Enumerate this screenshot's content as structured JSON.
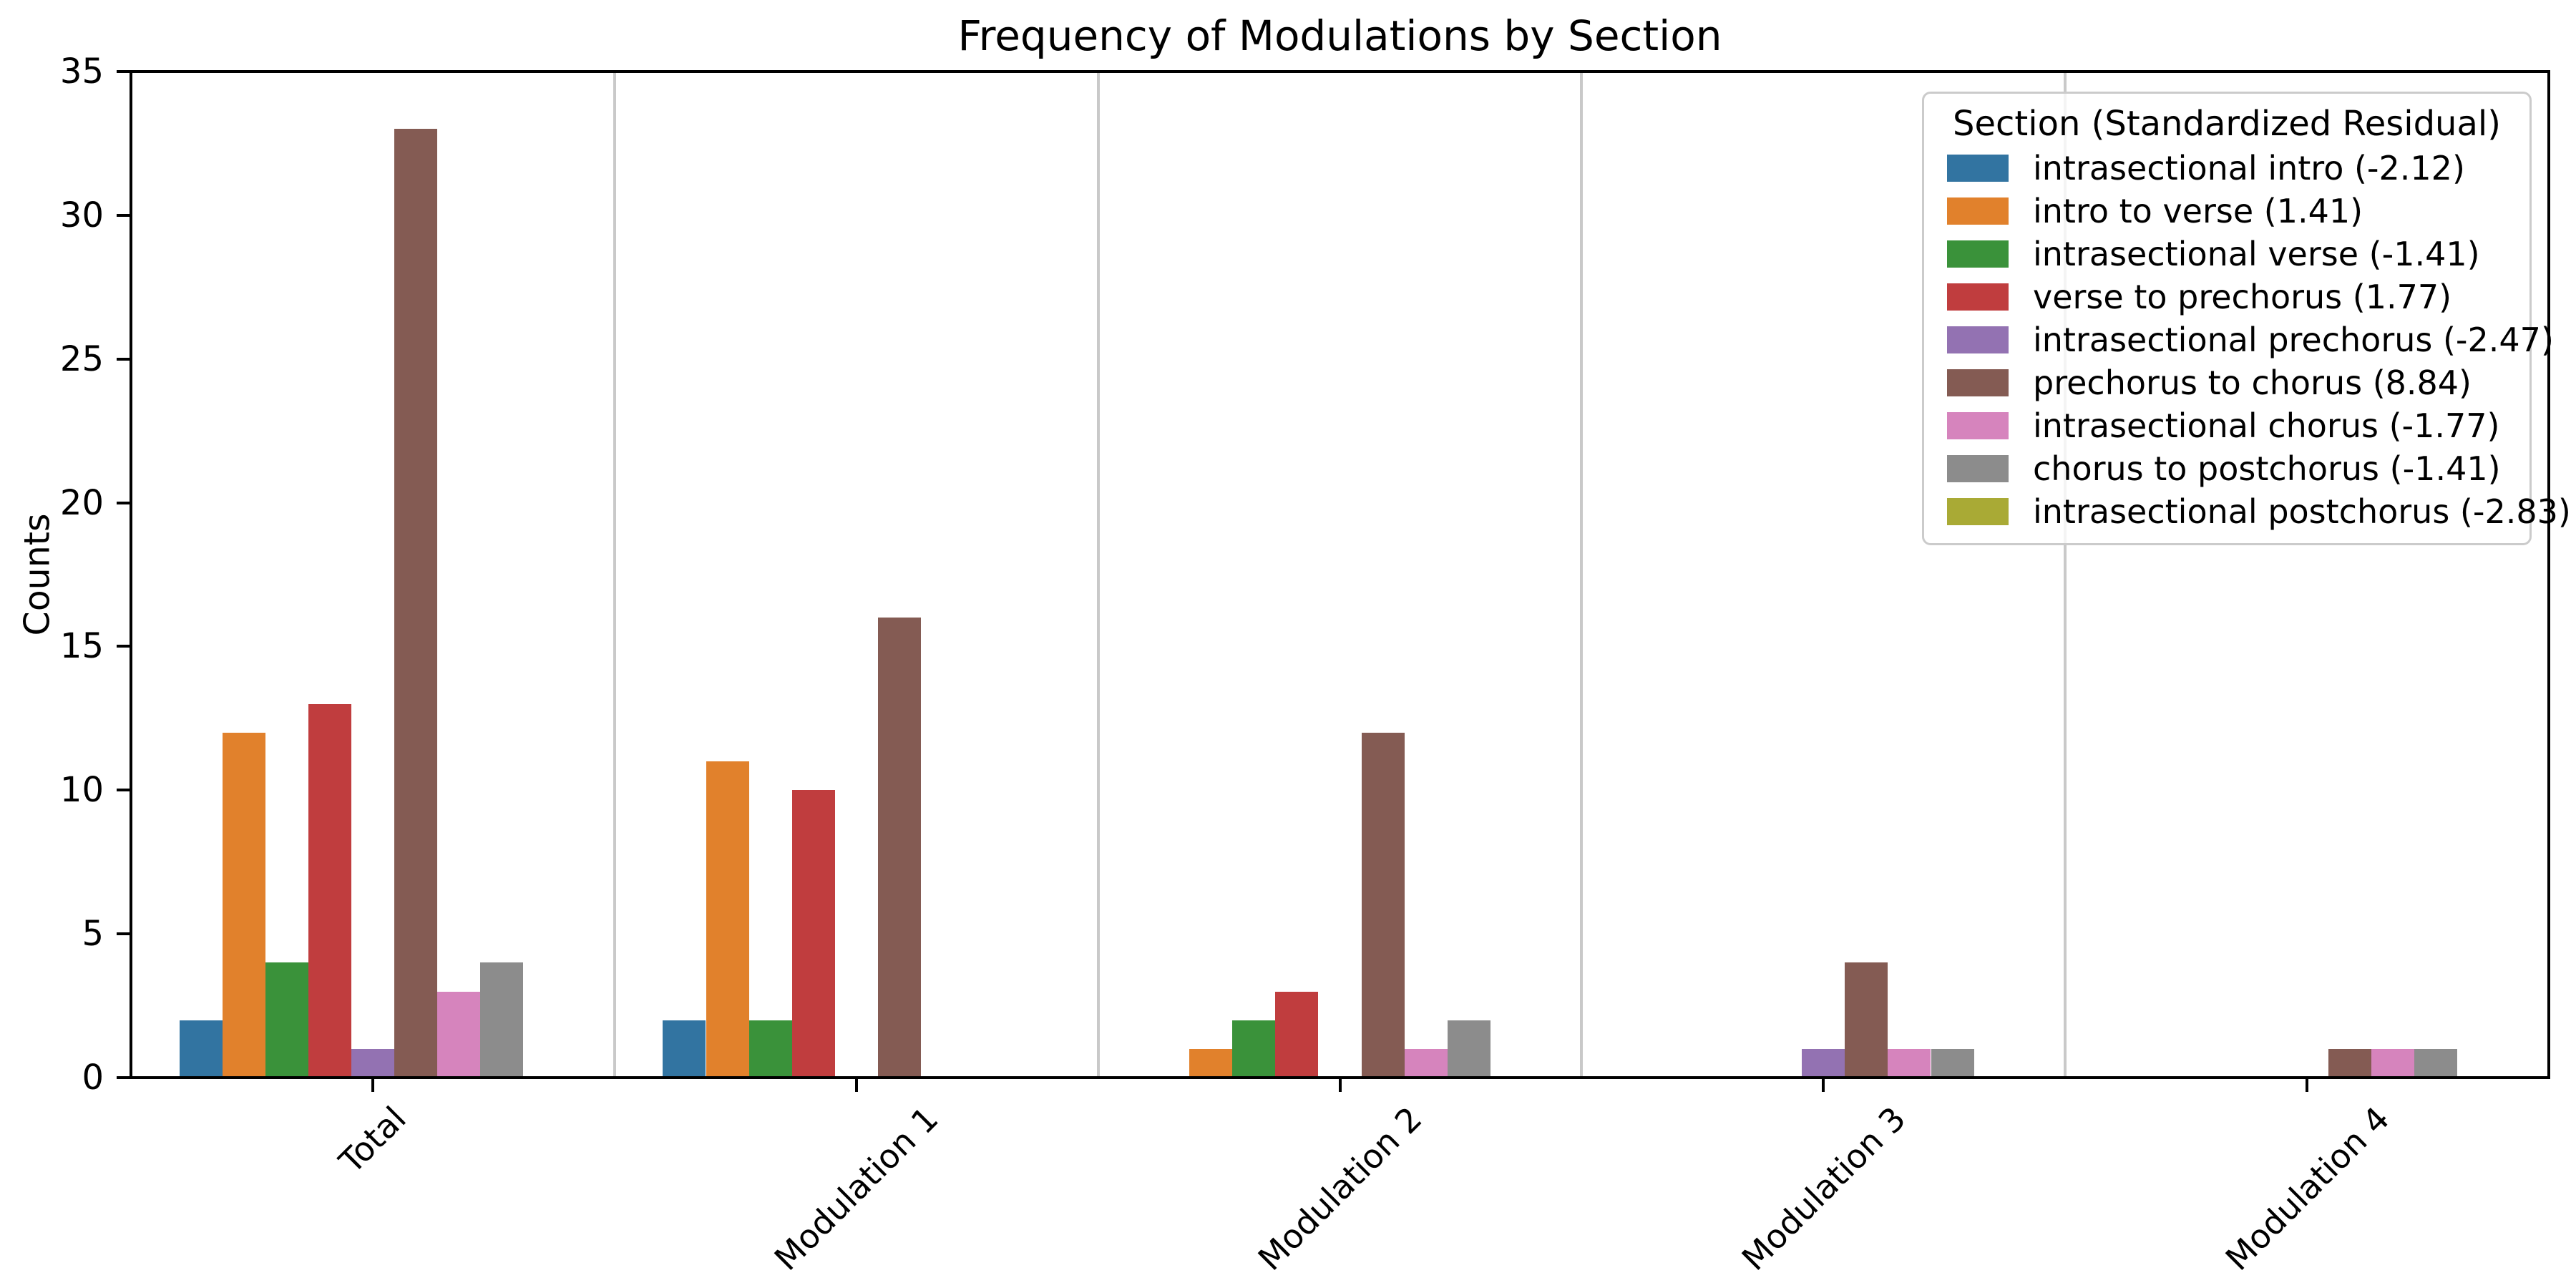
{
  "chart_data": {
    "type": "bar",
    "title": "Frequency of Modulations by Section",
    "xlabel": "",
    "ylabel": "Counts",
    "ylim": [
      0,
      35
    ],
    "yticks": [
      0,
      5,
      10,
      15,
      20,
      25,
      30,
      35
    ],
    "categories": [
      "Total",
      "Modulation 1",
      "Modulation 2",
      "Modulation 3",
      "Modulation 4"
    ],
    "legend_title": "Section (Standardized Residual)",
    "legend_position": "upper right",
    "grid": false,
    "group_dividers": true,
    "xtick_rotation": 45,
    "series": [
      {
        "name": "intrasectional intro (-2.12)",
        "color": "#3274a1",
        "values": [
          2,
          2,
          0,
          0,
          0
        ]
      },
      {
        "name": "intro to verse (1.41)",
        "color": "#e1812c",
        "values": [
          12,
          11,
          1,
          0,
          0
        ]
      },
      {
        "name": "intrasectional verse (-1.41)",
        "color": "#3a923a",
        "values": [
          4,
          2,
          2,
          0,
          0
        ]
      },
      {
        "name": "verse to prechorus (1.77)",
        "color": "#c03d3e",
        "values": [
          13,
          10,
          3,
          0,
          0
        ]
      },
      {
        "name": "intrasectional prechorus (-2.47)",
        "color": "#9372b2",
        "values": [
          1,
          0,
          0,
          1,
          0
        ]
      },
      {
        "name": "prechorus to chorus (8.84)",
        "color": "#845b53",
        "values": [
          33,
          16,
          12,
          4,
          1
        ]
      },
      {
        "name": "intrasectional chorus (-1.77)",
        "color": "#d684bd",
        "values": [
          3,
          0,
          1,
          1,
          1
        ]
      },
      {
        "name": "chorus to postchorus (-1.41)",
        "color": "#8c8c8c",
        "values": [
          4,
          0,
          2,
          1,
          1
        ]
      },
      {
        "name": "intrasectional postchorus (-2.83)",
        "color": "#a9aa35",
        "values": [
          0,
          0,
          0,
          0,
          0
        ]
      }
    ],
    "colors": {
      "background": "#ffffff",
      "axis": "#000000",
      "divider": "#c9c9c9",
      "legend_border": "#cbcbcb",
      "text": "#000000"
    }
  }
}
